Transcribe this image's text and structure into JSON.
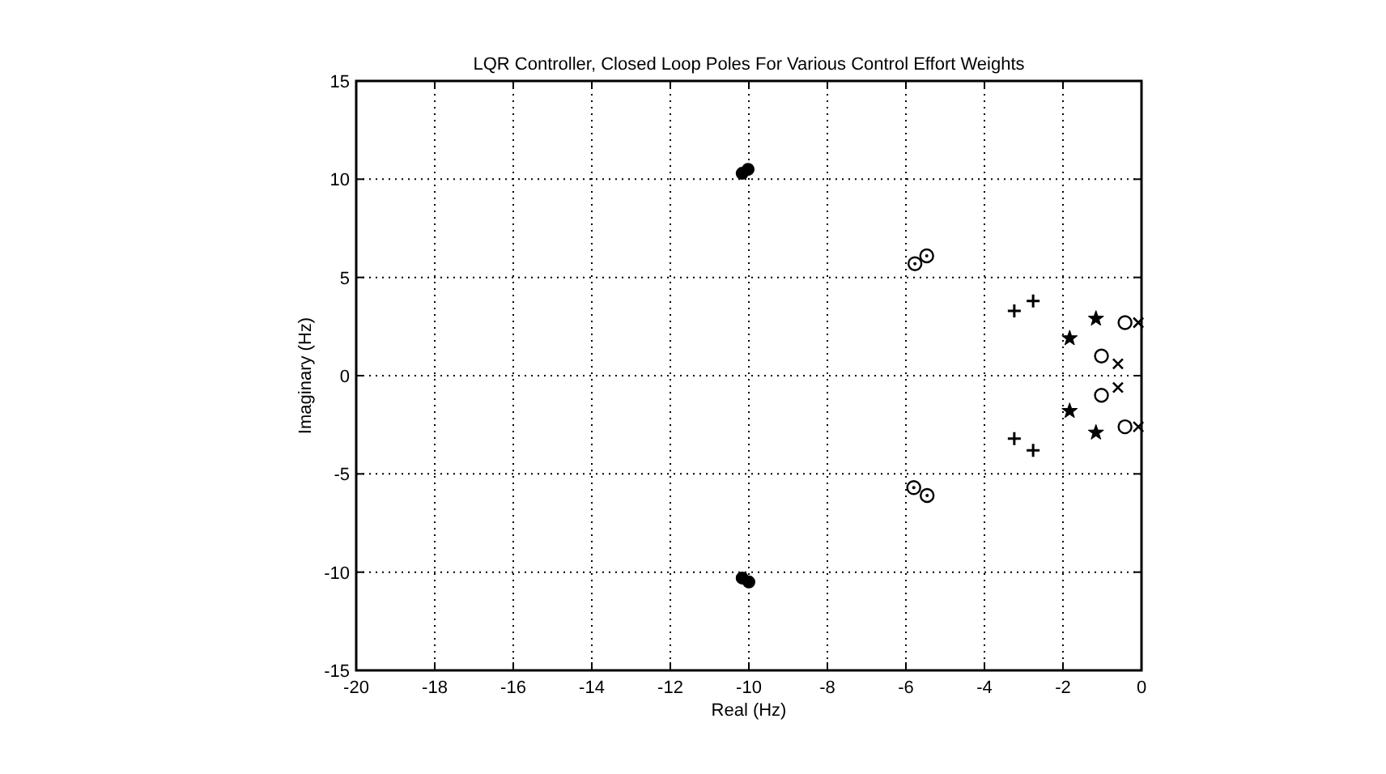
{
  "chart_data": {
    "type": "scatter",
    "title": "LQR Controller, Closed Loop Poles For Various Control Effort Weights",
    "xlabel": "Real  (Hz)",
    "ylabel": "Imaginary  (Hz)",
    "xlim": [
      -20,
      0
    ],
    "xticks": [
      -20,
      -18,
      -16,
      -14,
      -12,
      -10,
      -8,
      -6,
      -4,
      -2,
      0
    ],
    "ylim": [
      -15,
      15
    ],
    "yticks": [
      -15,
      -10,
      -5,
      0,
      5,
      10,
      15
    ],
    "grid": true,
    "series": [
      {
        "color": "#000000",
        "marker": "dot",
        "x": [
          -10.17,
          -10.02,
          -10.17,
          -10.0
        ],
        "values": [
          10.3,
          10.5,
          -10.3,
          -10.5
        ]
      },
      {
        "color": "#000000",
        "marker": "circle-dot",
        "x": [
          -5.77,
          -5.47,
          -5.8,
          -5.46
        ],
        "values": [
          5.7,
          6.1,
          -5.7,
          -6.1
        ]
      },
      {
        "color": "#000000",
        "marker": "plus",
        "x": [
          -3.24,
          -2.76,
          -3.24,
          -2.76
        ],
        "values": [
          3.3,
          3.8,
          -3.2,
          -3.8
        ]
      },
      {
        "color": "#000000",
        "marker": "star",
        "x": [
          -1.16,
          -1.83,
          -1.83,
          -1.16
        ],
        "values": [
          2.9,
          1.9,
          -1.8,
          -2.9
        ]
      },
      {
        "color": "#000000",
        "marker": "circle",
        "x": [
          -1.02,
          -1.02,
          -0.42,
          -0.42
        ],
        "values": [
          1.0,
          -1.0,
          2.7,
          -2.6
        ]
      },
      {
        "color": "#000000",
        "marker": "x",
        "x": [
          -0.6,
          -0.6,
          -0.08,
          -0.08
        ],
        "values": [
          0.6,
          -0.6,
          2.7,
          -2.6
        ]
      }
    ]
  }
}
